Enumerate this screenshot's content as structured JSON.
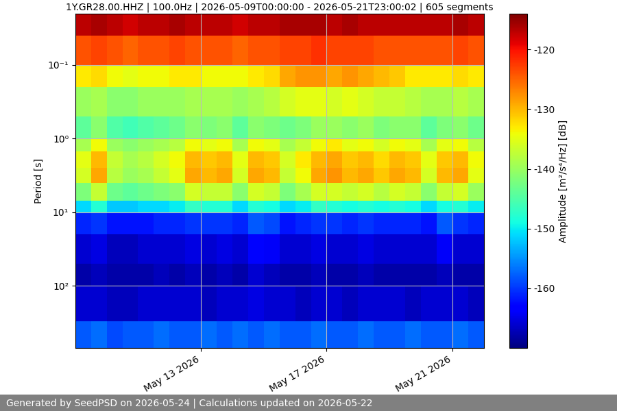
{
  "chart_data": {
    "type": "heatmap",
    "title": "1Y.GR28.00.HHZ | 100.0Hz | 2026-05-09T00:00:00 - 2026-05-21T23:00:02 | 605 segments",
    "y_label": "Period [s]",
    "footer": "Generated by SeedPSD on 2026-05-24 | Calculations updated on 2026-05-22",
    "log": "y",
    "grid": true,
    "color": "jet",
    "time_edges": [
      "2026-05-09T00:00",
      "2026-05-09T12:00",
      "2026-05-10T00:00",
      "2026-05-10T12:00",
      "2026-05-11T00:00",
      "2026-05-11T12:00",
      "2026-05-12T00:00",
      "2026-05-12T12:00",
      "2026-05-13T00:00",
      "2026-05-13T12:00",
      "2026-05-14T00:00",
      "2026-05-14T12:00",
      "2026-05-15T00:00",
      "2026-05-15T12:00",
      "2026-05-16T00:00",
      "2026-05-16T12:00",
      "2026-05-17T00:00",
      "2026-05-17T12:00",
      "2026-05-18T00:00",
      "2026-05-18T12:00",
      "2026-05-19T00:00",
      "2026-05-19T12:00",
      "2026-05-20T00:00",
      "2026-05-20T12:00",
      "2026-05-21T00:00",
      "2026-05-21T12:00",
      "2026-05-22T00:00"
    ],
    "period_edges": [
      0.02,
      0.04,
      0.1,
      0.2,
      0.5,
      1,
      1.5,
      2.5,
      4,
      7,
      10,
      20,
      50,
      100,
      300,
      700
    ],
    "cells": [
      [
        -117,
        -116,
        -117,
        -118,
        -117,
        -117,
        -116,
        -117,
        -117,
        -117,
        -118,
        -117,
        -117,
        -116,
        -116,
        -116,
        -117,
        -116,
        -117,
        -117,
        -117,
        -117,
        -117,
        -117,
        -116,
        -117
      ],
      [
        -124,
        -123,
        -124,
        -125,
        -124,
        -124,
        -123,
        -124,
        -124,
        -124,
        -125,
        -124,
        -124,
        -123,
        -123,
        -122,
        -123,
        -123,
        -123,
        -124,
        -124,
        -124,
        -124,
        -124,
        -123,
        -124
      ],
      [
        -133,
        -132,
        -134,
        -135,
        -134,
        -134,
        -133,
        -133,
        -134,
        -134,
        -134,
        -133,
        -132,
        -129,
        -128,
        -128,
        -129,
        -128,
        -129,
        -130,
        -131,
        -133,
        -133,
        -133,
        -132,
        -133
      ],
      [
        -140,
        -139,
        -141,
        -141,
        -140,
        -140,
        -140,
        -139,
        -139,
        -139,
        -140,
        -139,
        -138,
        -136,
        -135,
        -135,
        -136,
        -135,
        -136,
        -137,
        -137,
        -138,
        -139,
        -139,
        -138,
        -139
      ],
      [
        -144,
        -141,
        -145,
        -146,
        -145,
        -144,
        -143,
        -141,
        -142,
        -141,
        -144,
        -141,
        -142,
        -143,
        -142,
        -140,
        -140,
        -141,
        -140,
        -142,
        -141,
        -141,
        -144,
        -142,
        -141,
        -143
      ],
      [
        -139,
        -134,
        -140,
        -141,
        -140,
        -139,
        -138,
        -134,
        -135,
        -134,
        -139,
        -134,
        -135,
        -139,
        -137,
        -134,
        -133,
        -135,
        -134,
        -136,
        -134,
        -135,
        -139,
        -135,
        -134,
        -138
      ],
      [
        -135,
        -130,
        -137,
        -139,
        -138,
        -136,
        -134,
        -130,
        -131,
        -130,
        -135,
        -130,
        -131,
        -136,
        -133,
        -130,
        -129,
        -131,
        -130,
        -132,
        -130,
        -131,
        -135,
        -131,
        -130,
        -134
      ],
      [
        -136,
        -129,
        -138,
        -140,
        -139,
        -137,
        -135,
        -129,
        -130,
        -129,
        -136,
        -129,
        -130,
        -137,
        -134,
        -129,
        -128,
        -130,
        -129,
        -131,
        -129,
        -130,
        -136,
        -130,
        -129,
        -135
      ],
      [
        -142,
        -137,
        -143,
        -144,
        -143,
        -142,
        -141,
        -136,
        -137,
        -137,
        -141,
        -136,
        -137,
        -142,
        -139,
        -136,
        -136,
        -137,
        -136,
        -138,
        -136,
        -137,
        -141,
        -137,
        -136,
        -140
      ],
      [
        -151,
        -148,
        -152,
        -152,
        -151,
        -151,
        -150,
        -147,
        -148,
        -148,
        -151,
        -148,
        -149,
        -151,
        -150,
        -147,
        -148,
        -149,
        -148,
        -149,
        -148,
        -149,
        -151,
        -149,
        -148,
        -150
      ],
      [
        -161,
        -160,
        -162,
        -162,
        -162,
        -161,
        -161,
        -160,
        -160,
        -160,
        -161,
        -158,
        -159,
        -162,
        -161,
        -160,
        -160,
        -161,
        -160,
        -161,
        -161,
        -161,
        -162,
        -158,
        -160,
        -161
      ],
      [
        -166,
        -165,
        -167,
        -167,
        -166,
        -166,
        -166,
        -165,
        -166,
        -165,
        -166,
        -163,
        -164,
        -166,
        -166,
        -165,
        -166,
        -166,
        -165,
        -166,
        -166,
        -166,
        -166,
        -164,
        -166,
        -166
      ],
      [
        -168,
        -167,
        -168,
        -168,
        -168,
        -167,
        -168,
        -167,
        -168,
        -167,
        -168,
        -166,
        -167,
        -168,
        -168,
        -167,
        -168,
        -168,
        -167,
        -168,
        -168,
        -168,
        -168,
        -167,
        -168,
        -168
      ],
      [
        -166,
        -166,
        -167,
        -167,
        -166,
        -166,
        -166,
        -166,
        -167,
        -166,
        -166,
        -165,
        -166,
        -166,
        -167,
        -166,
        -166,
        -167,
        -166,
        -166,
        -166,
        -167,
        -166,
        -166,
        -166,
        -167
      ],
      [
        -158,
        -157,
        -159,
        -158,
        -158,
        -157,
        -158,
        -158,
        -157,
        -158,
        -157,
        -158,
        -157,
        -158,
        -158,
        -157,
        -158,
        -158,
        -157,
        -158,
        -158,
        -157,
        -158,
        -158,
        -157,
        -158
      ]
    ],
    "xlim": [
      "2026-05-09T00:00",
      "2026-05-22T00:00"
    ],
    "xticks": [
      {
        "value": "2026-05-13T00:00",
        "label": "May 13 2026"
      },
      {
        "value": "2026-05-17T00:00",
        "label": "May 17 2026"
      },
      {
        "value": "2026-05-21T00:00",
        "label": "May 21 2026"
      }
    ],
    "ylim": [
      700,
      0.02
    ],
    "yticks": [
      {
        "value": 0.1,
        "label": "10⁻¹"
      },
      {
        "value": 1,
        "label": "10⁰"
      },
      {
        "value": 10,
        "label": "10¹"
      },
      {
        "value": 100,
        "label": "10²"
      }
    ],
    "colorbar": {
      "label": "Amplitude [m²/s⁴/Hz] [dB]",
      "range": [
        -170,
        -114
      ],
      "ticks": [
        -160,
        -150,
        -140,
        -130,
        -120
      ]
    }
  }
}
